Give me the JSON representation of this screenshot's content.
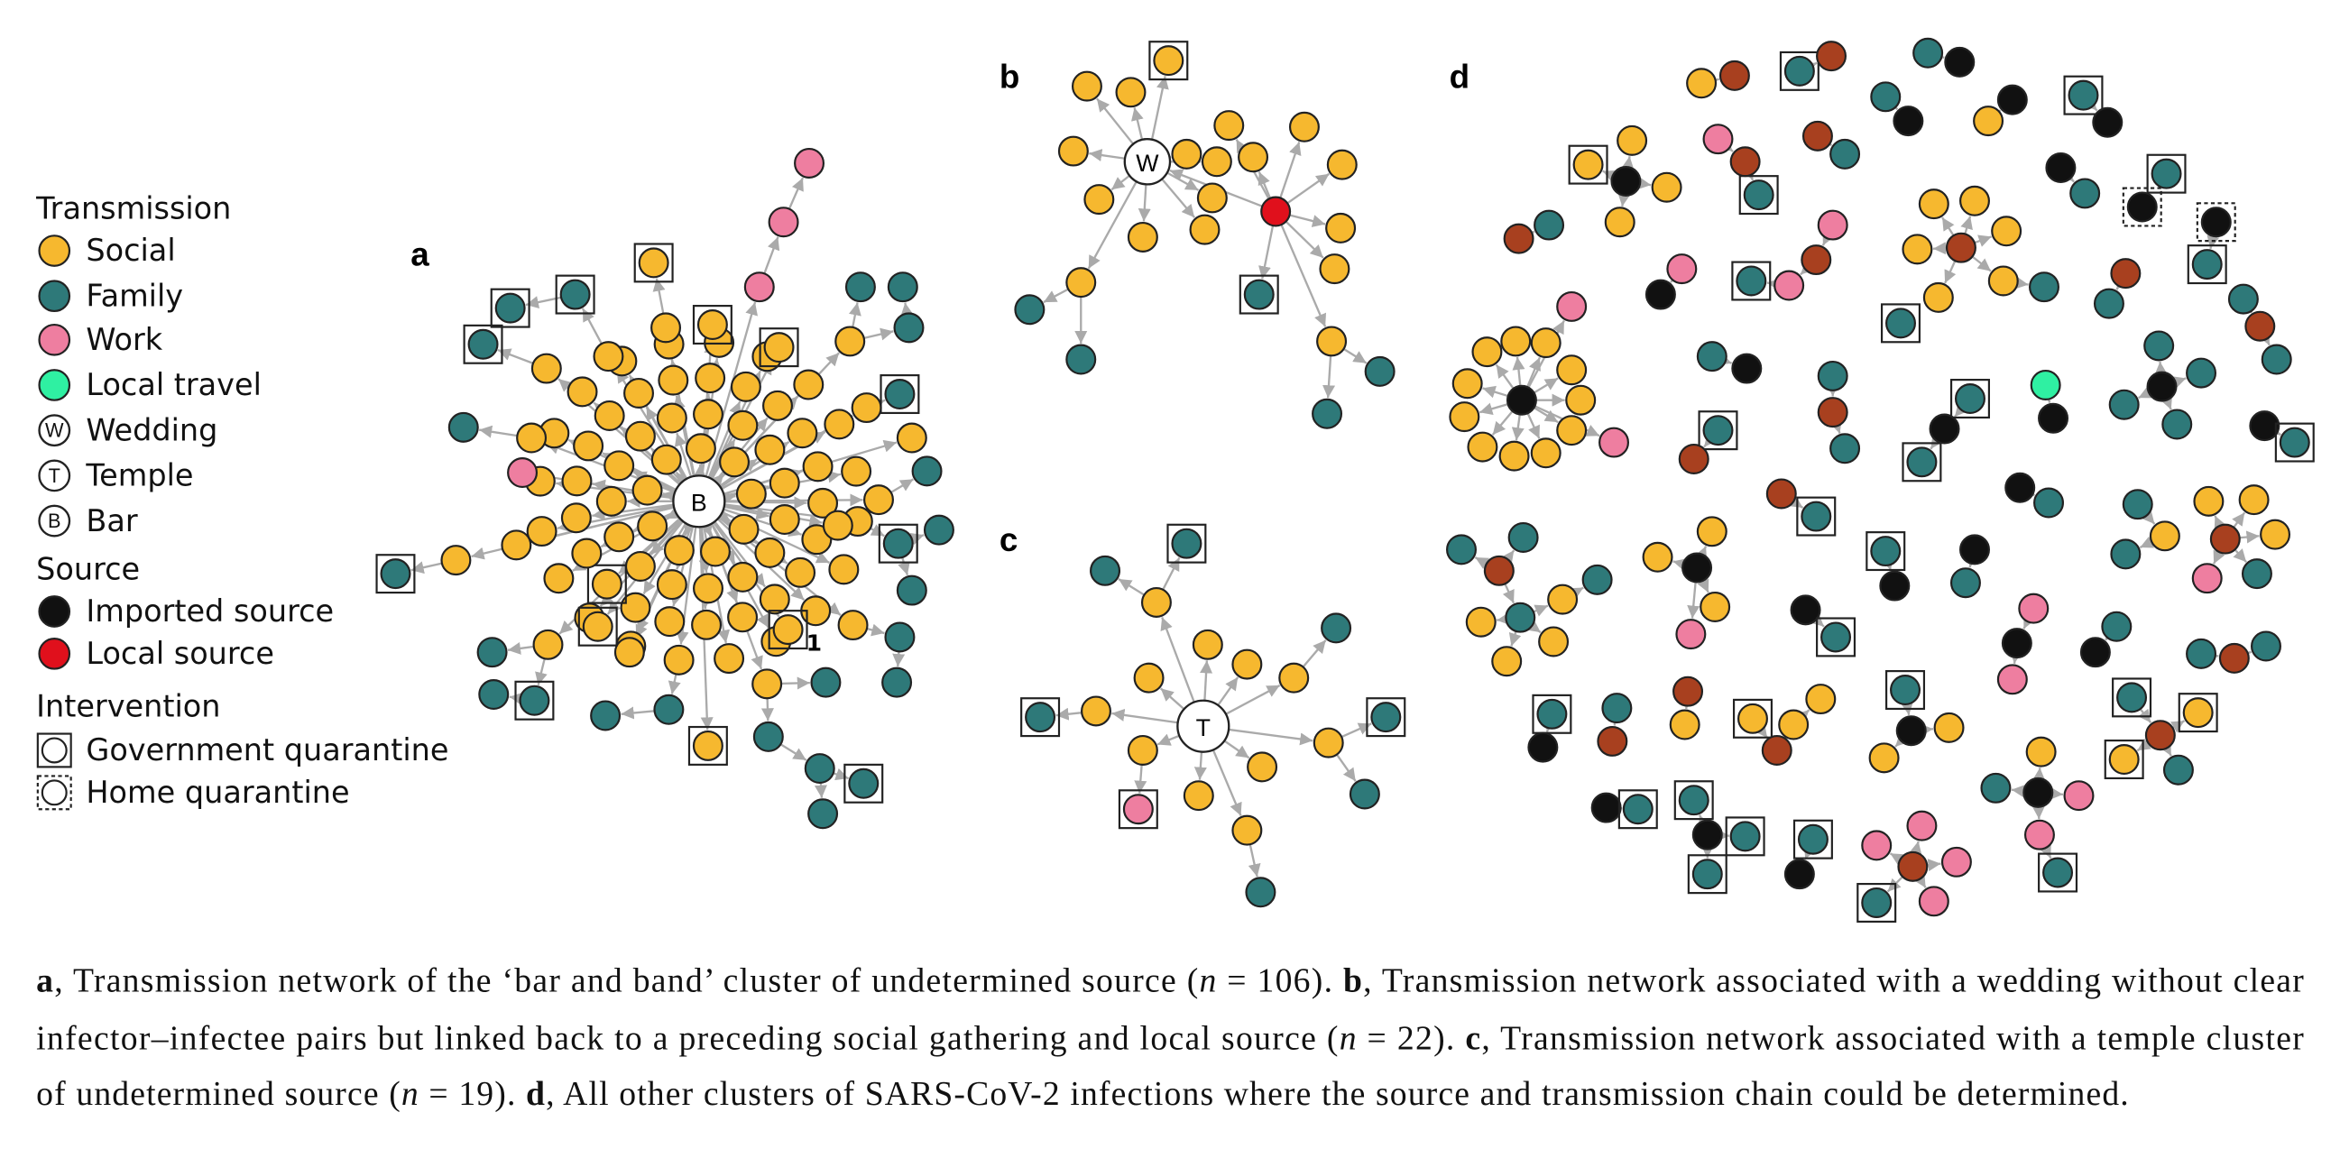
{
  "legend": {
    "transmission": {
      "title": "Transmission",
      "items": [
        {
          "label": "Social"
        },
        {
          "label": "Family"
        },
        {
          "label": "Work"
        },
        {
          "label": "Local travel"
        },
        {
          "symbol": "W",
          "label": "Wedding"
        },
        {
          "symbol": "T",
          "label": "Temple"
        },
        {
          "symbol": "B",
          "label": "Bar"
        }
      ]
    },
    "source": {
      "title": "Source",
      "items": [
        {
          "label": "Imported source"
        },
        {
          "label": "Local source"
        }
      ]
    },
    "intervention": {
      "title": "Intervention",
      "items": [
        {
          "label": "Government quarantine"
        },
        {
          "label": "Home quarantine"
        }
      ]
    }
  },
  "panels": {
    "a": {
      "label": "a",
      "hub": "B",
      "annotation": "1"
    },
    "b": {
      "label": "b",
      "hub": "W"
    },
    "c": {
      "label": "c",
      "hub": "T"
    },
    "d": {
      "label": "d"
    }
  },
  "caption": {
    "lines": [
      [
        "a",
        ", Transmission network of the ‘bar and band’ cluster of undetermined source (",
        "n",
        " = 106). ",
        "b",
        ", Transmission network associated with a wedding without clear"
      ],
      [
        "infector–infectee pairs but linked back to a preceding social gathering and local source (",
        "n",
        " = 22). ",
        "c",
        ", Transmission network associated with a temple cluster"
      ],
      [
        "of undetermined source (",
        "n",
        " = 19). ",
        "d",
        ", All other clusters of SARS-CoV-2 infections where the source and transmission chain could be determined."
      ]
    ]
  }
}
